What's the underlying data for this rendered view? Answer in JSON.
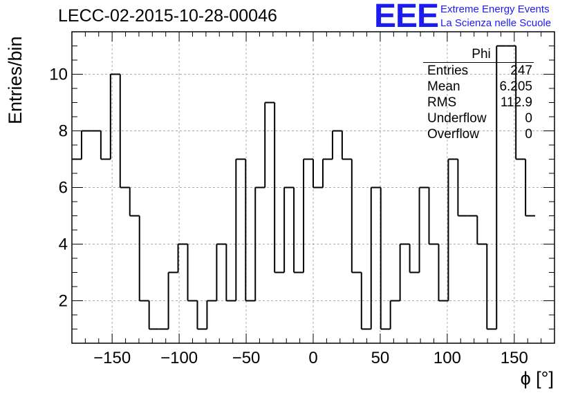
{
  "header": {
    "title": "LECC-02-2015-10-28-00046",
    "logo_text": "EEE",
    "tagline_1": "Extreme Energy Events",
    "tagline_2": "La Scienza nelle Scuole"
  },
  "stats_box": {
    "name": "Phi",
    "rows": [
      {
        "label": "Entries",
        "value": "247"
      },
      {
        "label": "Mean",
        "value": "6.205"
      },
      {
        "label": "RMS",
        "value": "112.9"
      },
      {
        "label": "Underflow",
        "value": "0"
      },
      {
        "label": "Overflow",
        "value": "0"
      }
    ]
  },
  "colors": {
    "logo": "#1c1cf0",
    "line": "#000000",
    "grid": "#aaaaaa"
  },
  "chart_data": {
    "type": "histogram",
    "title": "LECC-02-2015-10-28-00046",
    "xlabel": "ϕ [°]",
    "ylabel": "Entries/bin",
    "bin_edges_start": -180,
    "bin_width": 7.2,
    "values": [
      7,
      8,
      8,
      7,
      10,
      6,
      5,
      2,
      1,
      1,
      3,
      4,
      2,
      1,
      2,
      4,
      2,
      7,
      2,
      6,
      9,
      3,
      6,
      3,
      7,
      6,
      7,
      8,
      7,
      3,
      1,
      6,
      1,
      2,
      4,
      3,
      6,
      4,
      2,
      7,
      5,
      5,
      4,
      1,
      11,
      11,
      7,
      5
    ],
    "xlim": [
      -180,
      180
    ],
    "ylim": [
      0.5,
      11.5
    ],
    "x_ticks": [
      -150,
      -100,
      -50,
      0,
      50,
      100,
      150
    ],
    "x_tick_labels": [
      "−150",
      "−100",
      "−50",
      "0",
      "50",
      "100",
      "150"
    ],
    "y_ticks": [
      2,
      4,
      6,
      8,
      10
    ],
    "y_tick_labels": [
      "2",
      "4",
      "6",
      "8",
      "10"
    ],
    "grid": true
  }
}
